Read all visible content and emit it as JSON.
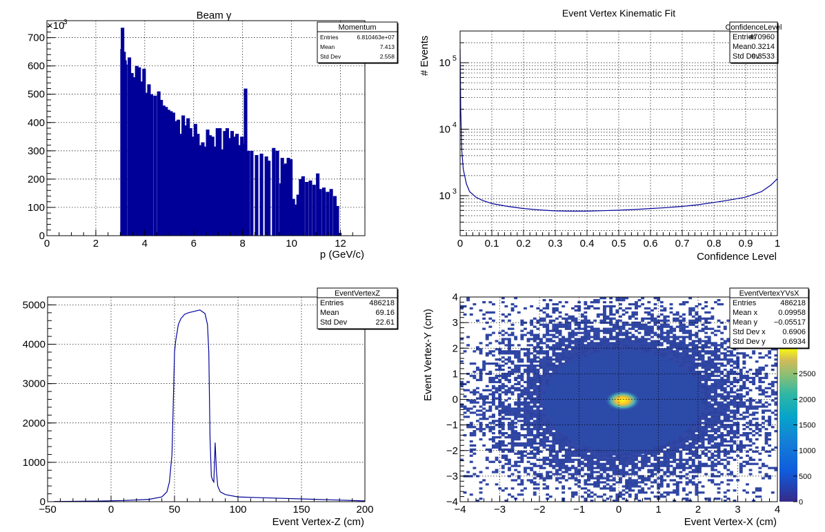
{
  "chart_data": [
    {
      "id": "p1",
      "type": "bar",
      "title": "Beam γ",
      "xlabel": "p (GeV/c)",
      "ylabel": "",
      "y_scale_label": "×10",
      "y_scale_exp": "3",
      "xlim": [
        0,
        13
      ],
      "ylim": [
        0,
        760
      ],
      "xticks": [
        "0",
        "2",
        "4",
        "6",
        "8",
        "10",
        "12"
      ],
      "yticks": [
        "0",
        "100",
        "200",
        "300",
        "400",
        "500",
        "600",
        "700"
      ],
      "stats": {
        "name": "Momentum",
        "rows": [
          [
            "Entries",
            "6.810463e+07"
          ],
          [
            "Mean",
            "7.413"
          ],
          [
            "Std Dev",
            "2.558"
          ]
        ]
      },
      "bins": [
        [
          3.0,
          660
        ],
        [
          3.02,
          735
        ],
        [
          3.05,
          640
        ],
        [
          3.08,
          650
        ],
        [
          3.12,
          620
        ],
        [
          3.15,
          605
        ],
        [
          3.3,
          630
        ],
        [
          3.4,
          575
        ],
        [
          3.5,
          560
        ],
        [
          3.6,
          600
        ],
        [
          3.7,
          595
        ],
        [
          3.8,
          545
        ],
        [
          3.9,
          590
        ],
        [
          4.0,
          505
        ],
        [
          4.1,
          535
        ],
        [
          4.2,
          500
        ],
        [
          4.35,
          495
        ],
        [
          4.5,
          510
        ],
        [
          4.6,
          480
        ],
        [
          4.7,
          460
        ],
        [
          4.8,
          455
        ],
        [
          4.9,
          445
        ],
        [
          5.0,
          440
        ],
        [
          5.1,
          435
        ],
        [
          5.2,
          405
        ],
        [
          5.3,
          410
        ],
        [
          5.4,
          360
        ],
        [
          5.5,
          425
        ],
        [
          5.6,
          390
        ],
        [
          5.7,
          415
        ],
        [
          5.8,
          380
        ],
        [
          5.9,
          350
        ],
        [
          6.0,
          395
        ],
        [
          6.1,
          360
        ],
        [
          6.2,
          320
        ],
        [
          6.3,
          330
        ],
        [
          6.4,
          315
        ],
        [
          6.5,
          375
        ],
        [
          6.6,
          355
        ],
        [
          6.7,
          350
        ],
        [
          6.8,
          315
        ],
        [
          6.9,
          380
        ],
        [
          7.0,
          380
        ],
        [
          7.1,
          305
        ],
        [
          7.2,
          370
        ],
        [
          7.3,
          380
        ],
        [
          7.4,
          345
        ],
        [
          7.5,
          370
        ],
        [
          7.6,
          350
        ],
        [
          7.7,
          360
        ],
        [
          7.8,
          320
        ],
        [
          7.9,
          350
        ],
        [
          8.0,
          325
        ],
        [
          8.05,
          520
        ],
        [
          8.15,
          300
        ],
        [
          8.3,
          300
        ],
        [
          8.5,
          285
        ],
        [
          8.7,
          290
        ],
        [
          8.9,
          280
        ],
        [
          9.0,
          265
        ],
        [
          9.2,
          310
        ],
        [
          9.35,
          300
        ],
        [
          9.5,
          185
        ],
        [
          9.55,
          275
        ],
        [
          9.6,
          250
        ],
        [
          9.7,
          255
        ],
        [
          9.8,
          275
        ],
        [
          9.9,
          270
        ],
        [
          10.0,
          130
        ],
        [
          10.1,
          110
        ],
        [
          10.2,
          145
        ],
        [
          10.3,
          200
        ],
        [
          10.4,
          210
        ],
        [
          10.55,
          190
        ],
        [
          10.7,
          195
        ],
        [
          10.85,
          180
        ],
        [
          11.0,
          220
        ],
        [
          11.1,
          165
        ],
        [
          11.25,
          170
        ],
        [
          11.4,
          155
        ],
        [
          11.55,
          165
        ],
        [
          11.7,
          140
        ],
        [
          11.8,
          105
        ],
        [
          11.9,
          10
        ]
      ]
    },
    {
      "id": "p2",
      "type": "line",
      "title": "Event Vertex Kinematic Fit",
      "xlabel": "Confidence Level",
      "ylabel": "# Events",
      "xlim": [
        0,
        1
      ],
      "ylim": [
        250,
        300000
      ],
      "log_y": true,
      "xticks": [
        "0",
        "0.1",
        "0.2",
        "0.3",
        "0.4",
        "0.5",
        "0.6",
        "0.7",
        "0.8",
        "0.9",
        "1"
      ],
      "yticks": [
        {
          "base": "10",
          "exp": "3",
          "value": 1000
        },
        {
          "base": "10",
          "exp": "4",
          "value": 10000
        },
        {
          "base": "10",
          "exp": "5",
          "value": 100000
        }
      ],
      "stats": {
        "name": "ConfidenceLevel",
        "rows": [
          [
            "Entries",
            "470960"
          ],
          [
            "Mean",
            "0.3214"
          ],
          [
            "Std Dev",
            "0.3533"
          ]
        ]
      },
      "x": [
        0.0,
        0.002,
        0.005,
        0.01,
        0.02,
        0.03,
        0.05,
        0.07,
        0.1,
        0.15,
        0.2,
        0.25,
        0.3,
        0.35,
        0.4,
        0.45,
        0.5,
        0.55,
        0.6,
        0.65,
        0.7,
        0.75,
        0.8,
        0.85,
        0.9,
        0.95,
        0.98,
        1.0
      ],
      "y": [
        160000,
        20000,
        5000,
        2500,
        1500,
        1150,
        950,
        850,
        760,
        690,
        640,
        610,
        590,
        585,
        585,
        595,
        605,
        620,
        640,
        660,
        690,
        730,
        790,
        860,
        950,
        1150,
        1450,
        1800
      ]
    },
    {
      "id": "p3",
      "type": "line",
      "title": "",
      "xlabel": "Event Vertex-Z (cm)",
      "ylabel": "",
      "xlim": [
        -50,
        200
      ],
      "ylim": [
        0,
        5200
      ],
      "xticks": [
        "−50",
        "0",
        "50",
        "100",
        "150",
        "200"
      ],
      "yticks": [
        "0",
        "1000",
        "2000",
        "3000",
        "4000",
        "5000"
      ],
      "stats": {
        "name": "EventVertexZ",
        "rows": [
          [
            "Entries",
            "486218"
          ],
          [
            "Mean",
            "69.16"
          ],
          [
            "Std Dev",
            "22.61"
          ]
        ]
      },
      "x": [
        -45,
        -30,
        -10,
        10,
        30,
        40,
        44,
        46,
        48,
        49,
        50,
        51,
        52,
        53,
        55,
        58,
        61,
        65,
        70,
        74,
        76,
        77,
        78,
        79,
        80,
        81,
        82,
        83,
        84,
        86,
        90,
        100,
        120,
        150,
        180,
        200
      ],
      "y": [
        5,
        8,
        15,
        30,
        60,
        120,
        250,
        500,
        1200,
        2500,
        3800,
        4100,
        4300,
        4500,
        4650,
        4760,
        4800,
        4830,
        4870,
        4780,
        4500,
        3800,
        1600,
        650,
        550,
        500,
        1500,
        800,
        400,
        250,
        180,
        120,
        100,
        70,
        40,
        20
      ]
    },
    {
      "id": "p4",
      "type": "heatmap",
      "title": "",
      "xlabel": "Event Vertex-X (cm)",
      "ylabel": "Event Vertex-Y (cm)",
      "xlim": [
        -4,
        4
      ],
      "ylim": [
        -4,
        4
      ],
      "xticks": [
        "−4",
        "−3",
        "−2",
        "−1",
        "0",
        "1",
        "2",
        "3",
        "4"
      ],
      "yticks": [
        "−4",
        "−3",
        "−2",
        "−1",
        "0",
        "1",
        "2",
        "3",
        "4"
      ],
      "stats": {
        "name": "EventVertexYVsX",
        "rows": [
          [
            "Entries",
            "486218"
          ],
          [
            "Mean x",
            "0.09958"
          ],
          [
            "Mean y",
            "−0.05517"
          ],
          [
            "Std Dev x",
            "0.6906"
          ],
          [
            "Std Dev y",
            "0.6934"
          ]
        ]
      },
      "zlim": [
        0,
        3000
      ],
      "zticks": [
        "0",
        "500",
        "1000",
        "1500",
        "2000",
        "2500"
      ],
      "peak": {
        "x": 0.1,
        "y": -0.05,
        "value": 3000
      },
      "colors": {
        "bar": "#000099",
        "line": "#000099"
      }
    }
  ]
}
